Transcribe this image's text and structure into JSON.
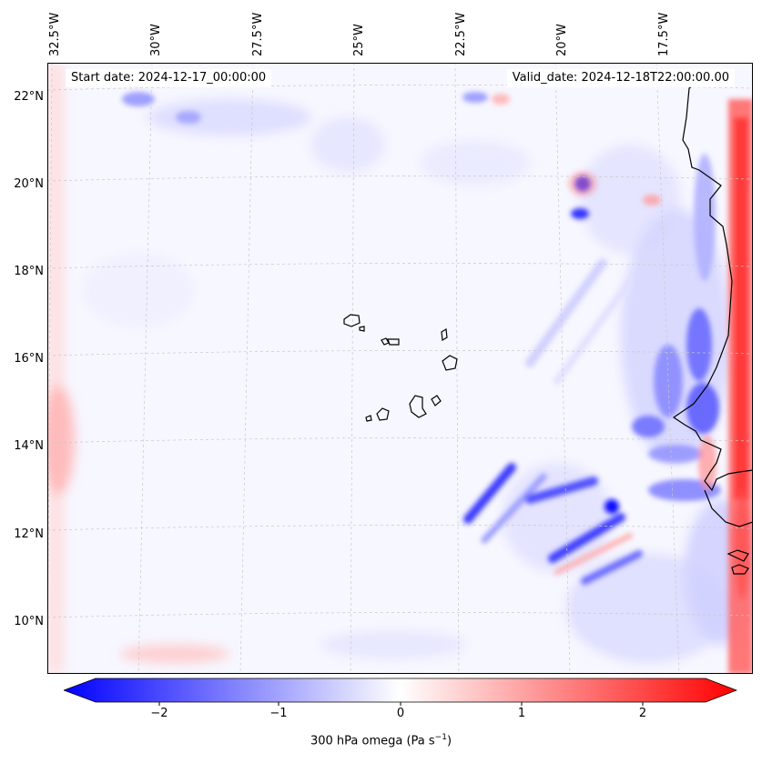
{
  "map": {
    "start_date": "Start date: 2024-12-17_00:00:00",
    "valid_date": "Valid_date: 2024-12-18T22:00:00.00",
    "lon_labels": [
      "32.5°W",
      "30°W",
      "27.5°W",
      "25°W",
      "22.5°W",
      "20°W",
      "17.5°W"
    ],
    "lat_labels": [
      "22°N",
      "20°N",
      "18°N",
      "16°N",
      "14°N",
      "12°N",
      "10°N"
    ],
    "lon_values": [
      -32.5,
      -30,
      -27.5,
      -25,
      -22.5,
      -20,
      -17.5
    ],
    "lat_values": [
      22,
      20,
      18,
      16,
      14,
      12,
      10
    ],
    "extent": {
      "lon": [
        -32.5,
        -15.7
      ],
      "lat": [
        8.8,
        22.8
      ]
    },
    "grid": true
  },
  "colorbar": {
    "ticks": [
      "−2",
      "−1",
      "0",
      "1",
      "2"
    ],
    "tick_values": [
      -2,
      -1,
      0,
      1,
      2
    ],
    "range": [
      -2.6,
      2.6
    ],
    "label": "300 hPa omega (Pa s",
    "label_sup": "−1",
    "label_end": ")",
    "colormap": "bwr",
    "colors": {
      "negative": "#0000ff",
      "zero": "#ffffff",
      "positive": "#ff0000"
    }
  },
  "chart_data": {
    "type": "heatmap",
    "variable": "300 hPa omega",
    "units": "Pa s−1",
    "zlim": [
      -2.6,
      2.6
    ],
    "features": [
      {
        "lon": -16.0,
        "lat": 17.0,
        "value": 2.0
      },
      {
        "lon": -16.0,
        "lat": 14.0,
        "value": 2.2
      },
      {
        "lon": -16.0,
        "lat": 20.5,
        "value": 1.6
      },
      {
        "lon": -17.0,
        "lat": 15.8,
        "value": -1.6
      },
      {
        "lon": -17.0,
        "lat": 14.5,
        "value": -1.4
      },
      {
        "lon": -19.5,
        "lat": 20.0,
        "value": -2.2
      },
      {
        "lon": -19.7,
        "lat": 19.3,
        "value": -1.5
      },
      {
        "lon": -22.0,
        "lat": 12.5,
        "value": -1.8
      },
      {
        "lon": -19.8,
        "lat": 12.6,
        "value": -1.6
      },
      {
        "lon": -19.3,
        "lat": 11.8,
        "value": -1.3
      },
      {
        "lon": -32.0,
        "lat": 14.0,
        "value": 0.8
      },
      {
        "lon": -29.0,
        "lat": 9.3,
        "value": 0.5
      },
      {
        "lon": -28.0,
        "lat": 21.8,
        "value": -0.6
      }
    ]
  }
}
